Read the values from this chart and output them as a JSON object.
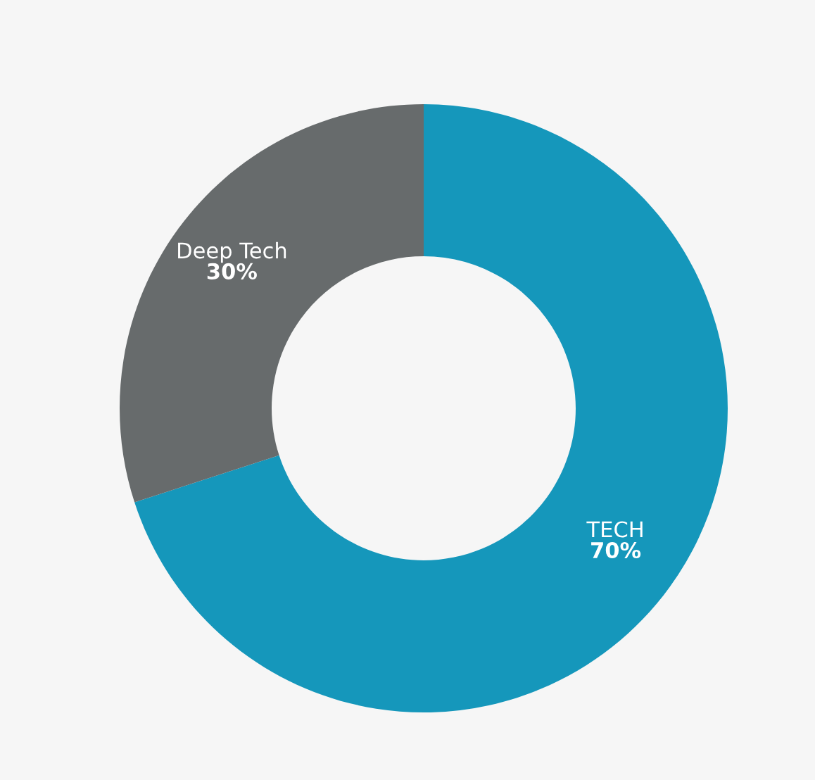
{
  "chart_data": {
    "type": "donut",
    "categories": [
      "TECH",
      "Deep Tech"
    ],
    "values": [
      70,
      30
    ],
    "colors": [
      "#1597bb",
      "#676b6c"
    ],
    "value_labels": [
      "70%",
      "30%"
    ],
    "legend": false
  }
}
